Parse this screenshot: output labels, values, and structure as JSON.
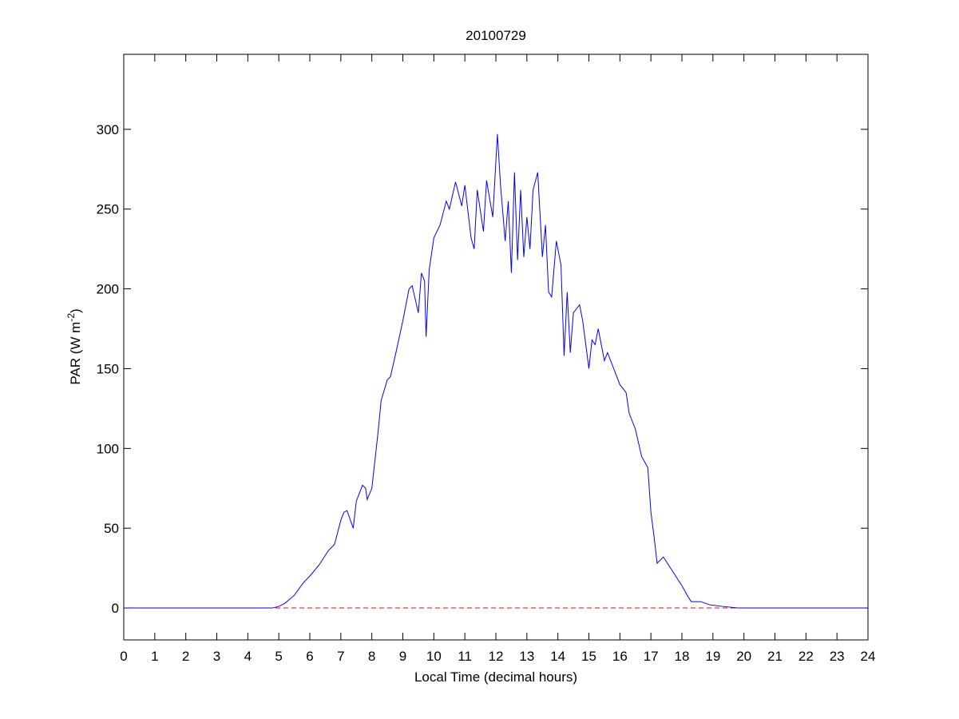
{
  "chart_data": {
    "type": "line",
    "title": "20100729",
    "xlabel": "Local Time (decimal hours)",
    "ylabel": [
      "PAR (W m",
      "-2",
      ")"
    ],
    "xlim": [
      0,
      24
    ],
    "ylim": [
      -20,
      347
    ],
    "xticks": [
      0,
      1,
      2,
      3,
      4,
      5,
      6,
      7,
      8,
      9,
      10,
      11,
      12,
      13,
      14,
      15,
      16,
      17,
      18,
      19,
      20,
      21,
      22,
      23,
      24
    ],
    "yticks": [
      0,
      50,
      100,
      150,
      200,
      250,
      300
    ],
    "reference_line": {
      "value": 0,
      "color": "#ff0000"
    },
    "series": [
      {
        "name": "PAR",
        "color": "#0000ff",
        "x": [
          0,
          4.8,
          5.0,
          5.2,
          5.5,
          5.8,
          6.0,
          6.3,
          6.6,
          6.8,
          7.0,
          7.1,
          7.2,
          7.4,
          7.5,
          7.7,
          7.8,
          7.85,
          8.0,
          8.2,
          8.3,
          8.5,
          8.6,
          8.8,
          9.0,
          9.2,
          9.3,
          9.5,
          9.6,
          9.7,
          9.75,
          9.85,
          10.0,
          10.2,
          10.4,
          10.5,
          10.7,
          10.9,
          11.0,
          11.2,
          11.3,
          11.4,
          11.6,
          11.7,
          11.9,
          12.05,
          12.15,
          12.3,
          12.4,
          12.5,
          12.6,
          12.7,
          12.8,
          12.9,
          13.0,
          13.1,
          13.2,
          13.35,
          13.5,
          13.6,
          13.7,
          13.8,
          13.95,
          14.1,
          14.2,
          14.3,
          14.4,
          14.5,
          14.7,
          14.8,
          14.9,
          15.0,
          15.1,
          15.2,
          15.3,
          15.5,
          15.6,
          15.8,
          16.0,
          16.2,
          16.3,
          16.5,
          16.7,
          16.9,
          17.0,
          17.1,
          17.2,
          17.4,
          17.6,
          17.8,
          18.0,
          18.2,
          18.3,
          18.6,
          18.9,
          19.3,
          19.8,
          24
        ],
        "values": [
          0,
          0,
          1,
          3,
          8,
          16,
          20,
          27,
          36,
          40,
          55,
          60,
          61,
          50,
          67,
          77,
          75,
          68,
          75,
          110,
          130,
          143,
          145,
          162,
          180,
          200,
          202,
          185,
          210,
          205,
          170,
          212,
          232,
          240,
          255,
          250,
          267,
          252,
          265,
          232,
          225,
          262,
          236,
          268,
          245,
          297,
          265,
          230,
          255,
          210,
          273,
          218,
          262,
          220,
          245,
          225,
          262,
          273,
          220,
          240,
          198,
          195,
          230,
          215,
          158,
          198,
          160,
          185,
          190,
          180,
          165,
          150,
          168,
          165,
          175,
          155,
          160,
          150,
          140,
          135,
          122,
          112,
          95,
          88,
          60,
          45,
          28,
          32,
          26,
          20,
          14,
          7,
          4,
          4,
          2,
          1,
          0,
          0
        ]
      }
    ]
  }
}
